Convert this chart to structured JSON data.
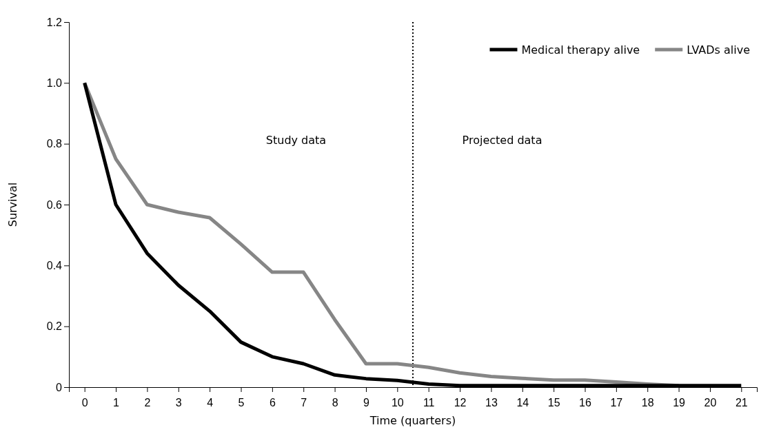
{
  "chart_data": {
    "type": "line",
    "xlabel": "Time (quarters)",
    "ylabel": "Survival",
    "x": [
      0,
      1,
      2,
      3,
      4,
      5,
      6,
      7,
      8,
      9,
      10,
      11,
      12,
      13,
      14,
      15,
      16,
      17,
      18,
      19,
      20,
      21
    ],
    "xlim": [
      -0.5,
      21.5
    ],
    "xticks": [
      0,
      1,
      2,
      3,
      4,
      5,
      6,
      7,
      8,
      9,
      10,
      11,
      12,
      13,
      14,
      15,
      16,
      17,
      18,
      19,
      20,
      21
    ],
    "ylim": [
      0,
      1.2
    ],
    "yticks": [
      0,
      {
        "value": 0.2,
        "label": "0.2"
      },
      {
        "value": 0.4,
        "label": "0.4"
      },
      {
        "value": 0.6,
        "label": "0.6"
      },
      {
        "value": 0.8,
        "label": "0.8"
      },
      {
        "value": 1,
        "label": "1.0"
      },
      {
        "value": 1.2,
        "label": "1.2"
      }
    ],
    "series": [
      {
        "name": "Medical therapy alive",
        "color": "#000000",
        "values": [
          1.0,
          0.6,
          0.44,
          0.335,
          0.25,
          0.148,
          0.1,
          0.077,
          0.04,
          0.028,
          0.022,
          0.01,
          0.005,
          0.005,
          0.005,
          0.005,
          0.005,
          0.005,
          0.005,
          0.005,
          0.005,
          0.005
        ]
      },
      {
        "name": "LVADs alive",
        "color": "#868686",
        "values": [
          1.0,
          0.75,
          0.6,
          0.575,
          0.557,
          0.47,
          0.378,
          0.378,
          0.222,
          0.077,
          0.077,
          0.065,
          0.047,
          0.035,
          0.029,
          0.023,
          0.023,
          0.017,
          0.01,
          0.005,
          null,
          null
        ]
      }
    ],
    "ref_lines": [
      {
        "axis": "x",
        "value": 10.5,
        "line_style": "dotted",
        "color": "#000000"
      }
    ],
    "annotations": [
      "Study data",
      "Projected data"
    ],
    "legend": "top right",
    "grid": false,
    "marker": "none",
    "line_style": "solid"
  }
}
